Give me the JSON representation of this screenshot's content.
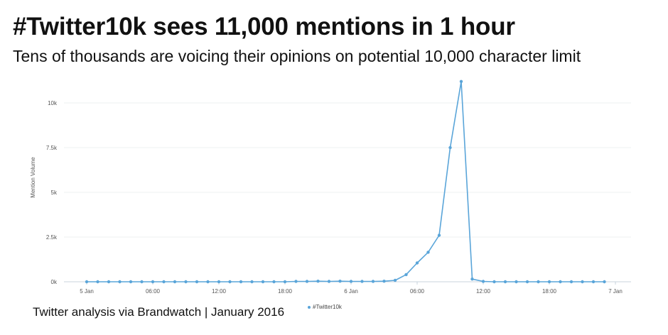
{
  "chart_data": {
    "type": "line",
    "title": "#Twitter10k sees 11,000 mentions in 1 hour",
    "subtitle": "Tens of thousands are voicing their opinions on potential 10,000 character limit",
    "ylabel": "Mention Volume",
    "xlabel": "",
    "ylim": [
      0,
      11000
    ],
    "yticks": [
      0,
      2500,
      5000,
      7500,
      10000
    ],
    "ytick_labels": [
      "0k",
      "2.5k",
      "5k",
      "7.5k",
      "10k"
    ],
    "xtick_labels": [
      "5 Jan",
      "06:00",
      "12:00",
      "18:00",
      "6 Jan",
      "06:00",
      "12:00",
      "18:00",
      "7 Jan"
    ],
    "x_unit": "hours from 5 Jan 00:00",
    "xlim": [
      0,
      48
    ],
    "grid": true,
    "legend_position": "bottom",
    "series": [
      {
        "name": "#Twitter10k",
        "color": "#5aa5d9",
        "x": [
          0,
          1,
          2,
          3,
          4,
          5,
          6,
          7,
          8,
          9,
          10,
          11,
          12,
          13,
          14,
          15,
          16,
          17,
          18,
          19,
          20,
          21,
          22,
          23,
          24,
          25,
          26,
          27,
          28,
          29,
          30,
          31,
          32,
          33,
          34,
          35,
          36,
          37,
          38,
          39,
          40,
          41,
          42,
          43,
          44,
          45,
          46,
          47
        ],
        "values": [
          0,
          0,
          0,
          0,
          0,
          0,
          0,
          0,
          0,
          0,
          0,
          0,
          0,
          0,
          0,
          0,
          0,
          0,
          0,
          20,
          20,
          30,
          20,
          30,
          20,
          20,
          20,
          30,
          80,
          400,
          1050,
          1650,
          2600,
          7500,
          11200,
          150,
          20,
          0,
          0,
          0,
          0,
          0,
          0,
          0,
          0,
          0,
          0,
          0
        ]
      }
    ]
  },
  "footer": "Twitter analysis via Brandwatch | January 2016"
}
